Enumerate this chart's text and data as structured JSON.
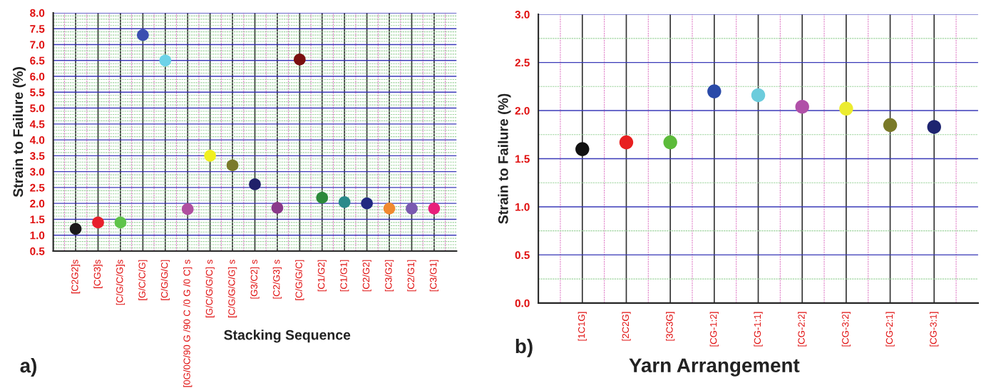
{
  "chart_data": [
    {
      "type": "scatter",
      "xlabel": "Stacking Sequence",
      "ylabel": "Strain to Failure (%)",
      "annotations": [
        "a)"
      ],
      "categories": [
        "[C2G2]s",
        "[CG3]s",
        "[C/G/C/G]s",
        "[G/C/C/G]",
        "[C/G/G/C]",
        "[0G/0C/90 G /90 C /0 G /0 C] s",
        "[G/C/G/G/C] s",
        "[C/G/G/C/G] s",
        "[G3/C2] s",
        "[C2/G3] s",
        "[C/G/G/C]",
        "[C1/G2]",
        "[C1/G1]",
        "[C2/G2]",
        "[C3/G2]",
        "[C2/G1]",
        "[C3/G1]"
      ],
      "values": [
        1.2,
        1.4,
        1.4,
        7.3,
        6.5,
        1.82,
        3.5,
        3.2,
        2.6,
        1.86,
        6.53,
        2.18,
        2.04,
        2.0,
        1.84,
        1.84,
        1.84
      ],
      "colors": [
        "#1a1a1a",
        "#e8202a",
        "#5ec44a",
        "#3a4fb0",
        "#6dd3e8",
        "#b050a0",
        "#f0f020",
        "#7a7a2a",
        "#20206a",
        "#8a3a8a",
        "#7a1010",
        "#2a8a3a",
        "#2a8a8a",
        "#202a80",
        "#f08a30",
        "#7a5ab0",
        "#e8207a"
      ],
      "ylim": [
        0.5,
        8.0
      ],
      "yticks": [
        0.5,
        {
          "value": 0.6,
          "label": null
        },
        {
          "value": 0.7,
          "label": null
        },
        {
          "value": 0.8,
          "label": null
        },
        {
          "value": 0.9,
          "label": null
        },
        {
          "value": 1.0,
          "label": "1.0"
        },
        {
          "value": 1.1,
          "label": null
        },
        {
          "value": 1.2,
          "label": null
        },
        {
          "value": 1.3,
          "label": null
        },
        {
          "value": 1.4,
          "label": null
        },
        1.5,
        {
          "value": 1.6,
          "label": null
        },
        {
          "value": 1.7,
          "label": null
        },
        {
          "value": 1.8,
          "label": null
        },
        {
          "value": 1.9,
          "label": null
        },
        {
          "value": 2.0,
          "label": "2.0"
        },
        {
          "value": 2.1,
          "label": null
        },
        {
          "value": 2.2,
          "label": null
        },
        {
          "value": 2.3,
          "label": null
        },
        {
          "value": 2.4,
          "label": null
        },
        2.5,
        {
          "value": 2.6,
          "label": null
        },
        {
          "value": 2.7,
          "label": null
        },
        {
          "value": 2.8,
          "label": null
        },
        {
          "value": 2.9,
          "label": null
        },
        {
          "value": 3.0,
          "label": "3.0"
        },
        {
          "value": 3.1,
          "label": null
        },
        {
          "value": 3.2,
          "label": null
        },
        {
          "value": 3.3,
          "label": null
        },
        {
          "value": 3.4,
          "label": null
        },
        3.5,
        {
          "value": 3.6,
          "label": null
        },
        {
          "value": 3.7,
          "label": null
        },
        {
          "value": 3.8,
          "label": null
        },
        {
          "value": 3.9,
          "label": null
        },
        {
          "value": 4.0,
          "label": "4.0"
        },
        {
          "value": 4.1,
          "label": null
        },
        {
          "value": 4.2,
          "label": null
        },
        {
          "value": 4.3,
          "label": null
        },
        {
          "value": 4.4,
          "label": null
        },
        4.5,
        {
          "value": 4.6,
          "label": null
        },
        {
          "value": 4.7,
          "label": null
        },
        {
          "value": 4.8,
          "label": null
        },
        {
          "value": 4.9,
          "label": null
        },
        {
          "value": 5.0,
          "label": "5.0"
        },
        {
          "value": 5.1,
          "label": null
        },
        {
          "value": 5.2,
          "label": null
        },
        {
          "value": 5.3,
          "label": null
        },
        {
          "value": 5.4,
          "label": null
        },
        5.5,
        {
          "value": 5.6,
          "label": null
        },
        {
          "value": 5.7,
          "label": null
        },
        {
          "value": 5.8,
          "label": null
        },
        {
          "value": 5.9,
          "label": null
        },
        {
          "value": 6.0,
          "label": "6.0"
        },
        {
          "value": 6.1,
          "label": null
        },
        {
          "value": 6.2,
          "label": null
        },
        {
          "value": 6.3,
          "label": null
        },
        {
          "value": 6.4,
          "label": null
        },
        6.5,
        {
          "value": 6.6,
          "label": null
        },
        {
          "value": 6.7,
          "label": null
        },
        {
          "value": 6.8,
          "label": null
        },
        {
          "value": 6.9,
          "label": null
        },
        {
          "value": 7.0,
          "label": "7.0"
        },
        {
          "value": 7.1,
          "label": null
        },
        {
          "value": 7.2,
          "label": null
        },
        {
          "value": 7.3,
          "label": null
        },
        {
          "value": 7.4,
          "label": null
        },
        7.5,
        {
          "value": 7.6,
          "label": null
        },
        {
          "value": 7.7,
          "label": null
        },
        {
          "value": 7.8,
          "label": null
        },
        {
          "value": 7.9,
          "label": null
        },
        {
          "value": 8.0,
          "label": "8.0"
        }
      ],
      "grid": true,
      "legend": false,
      "marker": "circle"
    },
    {
      "type": "scatter",
      "xlabel": "Yarn Arrangement",
      "ylabel": "Strain to Failure (%)",
      "annotations": [
        "b)"
      ],
      "categories": [
        "[1C1G]",
        "[2C2G]",
        "[3C3G]",
        "[CG-1:2]",
        "[CG-1:1]",
        "[CG-2:2]",
        "[CG-3:2]",
        "[CG-2:1]",
        "[CG-3:1]"
      ],
      "values": [
        1.6,
        1.67,
        1.67,
        2.2,
        2.16,
        2.04,
        2.02,
        1.85,
        1.83
      ],
      "colors": [
        "#111111",
        "#e82020",
        "#5cbb3a",
        "#2a4aa8",
        "#6cccdc",
        "#b050a8",
        "#ecec30",
        "#7a7a28",
        "#1e2470"
      ],
      "ylim": [
        0.0,
        3.0
      ],
      "yticks": [
        {
          "value": 0.0,
          "label": "0.0"
        },
        {
          "value": 0.25,
          "label": null
        },
        0.5,
        {
          "value": 0.75,
          "label": null
        },
        {
          "value": 1.0,
          "label": "1.0"
        },
        {
          "value": 1.25,
          "label": null
        },
        1.5,
        {
          "value": 1.75,
          "label": null
        },
        {
          "value": 2.0,
          "label": "2.0"
        },
        {
          "value": 2.25,
          "label": null
        },
        2.5,
        {
          "value": 2.75,
          "label": null
        },
        {
          "value": 3.0,
          "label": "3.0"
        }
      ],
      "grid": true,
      "legend": false,
      "marker": "circle"
    }
  ]
}
